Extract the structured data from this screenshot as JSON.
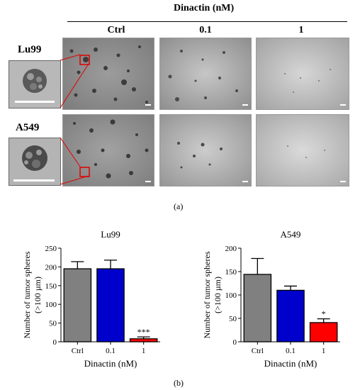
{
  "figure_a": {
    "header": "Dinactin (nM)",
    "columns": [
      "Ctrl",
      "0.1",
      "1"
    ],
    "rows": [
      "Lu99",
      "A549"
    ],
    "caption": "(a)"
  },
  "figure_b_caption": "(b)",
  "chart_data": [
    {
      "type": "bar",
      "title": "Lu99",
      "xlabel": "Dinactin (nM)",
      "ylabel": "Number of tumor spheres\n(>100 µm)",
      "categories": [
        "Ctrl",
        "0.1",
        "1"
      ],
      "values": [
        195,
        195,
        8
      ],
      "errors": [
        19,
        23,
        5
      ],
      "colors": [
        "#808080",
        "#0000cc",
        "#ff0000"
      ],
      "significance": [
        "",
        "",
        "***"
      ],
      "ylim": [
        0,
        250
      ],
      "yticks": [
        "0",
        "50",
        "100",
        "150",
        "200",
        "250"
      ]
    },
    {
      "type": "bar",
      "title": "A549",
      "xlabel": "Dinactin (nM)",
      "ylabel": "Number of tumor spheres\n(>100 µm)",
      "categories": [
        "Ctrl",
        "0.1",
        "1"
      ],
      "values": [
        144,
        110,
        41
      ],
      "errors": [
        34,
        9,
        8
      ],
      "colors": [
        "#808080",
        "#0000cc",
        "#ff0000"
      ],
      "significance": [
        "",
        "",
        "*"
      ],
      "ylim": [
        0,
        200
      ],
      "yticks": [
        "0",
        "50",
        "100",
        "150",
        "200"
      ]
    }
  ]
}
